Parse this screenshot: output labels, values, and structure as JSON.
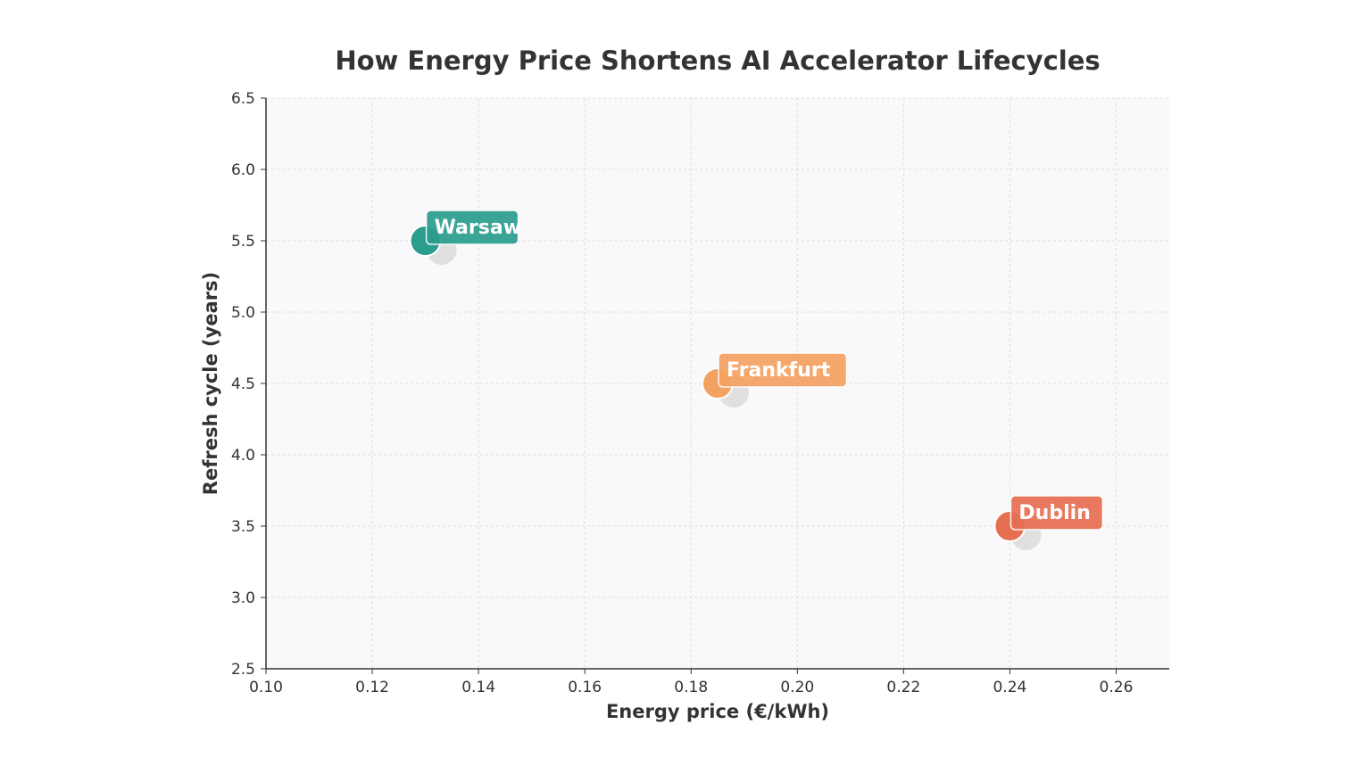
{
  "chart_data": {
    "type": "scatter",
    "title": "How Energy Price Shortens AI Accelerator Lifecycles",
    "xlabel": "Energy price (€/kWh)",
    "ylabel": "Refresh cycle (years)",
    "xlim": [
      0.1,
      0.27
    ],
    "ylim": [
      2.5,
      6.5
    ],
    "xticks": [
      "0.10",
      "0.12",
      "0.14",
      "0.16",
      "0.18",
      "0.20",
      "0.22",
      "0.24",
      "0.26"
    ],
    "yticks": [
      "2.5",
      "3.0",
      "3.5",
      "4.0",
      "4.5",
      "5.0",
      "5.5",
      "6.0",
      "6.5"
    ],
    "grid": true,
    "points": [
      {
        "label": "Warsaw",
        "x": 0.13,
        "y": 5.5,
        "color": "#2a9d8f"
      },
      {
        "label": "Frankfurt",
        "x": 0.185,
        "y": 4.5,
        "color": "#f4a261"
      },
      {
        "label": "Dublin",
        "x": 0.24,
        "y": 3.5,
        "color": "#e76f51"
      }
    ]
  }
}
